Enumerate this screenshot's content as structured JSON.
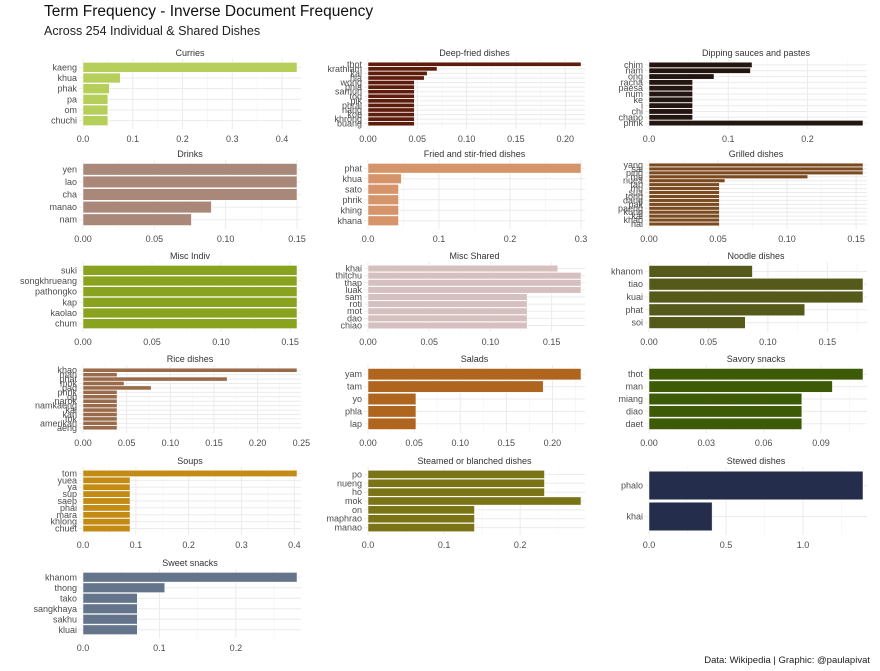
{
  "header": {
    "title": "Term Frequency - Inverse Document Frequency",
    "subtitle": "Across 254 Individual & Shared Dishes",
    "caption": "Data: Wikipedia | Graphic: @paulapivat"
  },
  "chart_data": {
    "type": "bar",
    "orientation": "horizontal",
    "layout": "facet-wrap 3 columns, free scales",
    "xlabel": "",
    "ylabel": "",
    "grid": true,
    "facets": [
      {
        "name": "Curries",
        "color": "#b5cf5a",
        "xlim": [
          0,
          0.43
        ],
        "ticks": [
          "0.0",
          "0.1",
          "0.2",
          "0.3",
          "0.4"
        ],
        "tick_values": [
          0,
          0.1,
          0.2,
          0.3,
          0.4
        ],
        "terms": [
          "kaeng",
          "khua",
          "phak",
          "pa",
          "om",
          "chuchi"
        ],
        "values": [
          0.43,
          0.075,
          0.053,
          0.05,
          0.05,
          0.05
        ]
      },
      {
        "name": "Deep-fried dishes",
        "color": "#5e1d0c",
        "xlim": [
          0,
          0.216
        ],
        "ticks": [
          "0.00",
          "0.05",
          "0.10",
          "0.15",
          "0.20"
        ],
        "tick_values": [
          0,
          0.05,
          0.1,
          0.15,
          0.2
        ],
        "terms": [
          "thot",
          "krathiam",
          "kai",
          "hia",
          "wong",
          "phia",
          "samun",
          "tod",
          "pik",
          "phrai",
          "nang",
          "kop",
          "khrong",
          "buang"
        ],
        "values": [
          0.216,
          0.07,
          0.06,
          0.057,
          0.047,
          0.047,
          0.047,
          0.047,
          0.047,
          0.047,
          0.047,
          0.047,
          0.047,
          0.047
        ]
      },
      {
        "name": "Dipping sauces and pastes",
        "color": "#231510",
        "xlim": [
          0,
          0.27
        ],
        "ticks": [
          "0.0",
          "0.1",
          "0.2"
        ],
        "tick_values": [
          0,
          0.1,
          0.2
        ],
        "terms": [
          "chim",
          "nam",
          "ong",
          "racha",
          "paesa",
          "num",
          "ke",
          "i",
          "chi",
          "chapo",
          "phrik"
        ],
        "values": [
          0.13,
          0.128,
          0.082,
          0.055,
          0.055,
          0.055,
          0.055,
          0.055,
          0.055,
          0.055,
          0.27
        ]
      },
      {
        "name": "Drinks",
        "color": "#a9887a",
        "xlim": [
          0,
          0.15
        ],
        "ticks": [
          "0.00",
          "0.05",
          "0.10",
          "0.15"
        ],
        "tick_values": [
          0,
          0.05,
          0.1,
          0.15
        ],
        "terms": [
          "yen",
          "lao",
          "cha",
          "manao",
          "nam"
        ],
        "values": [
          0.15,
          0.15,
          0.15,
          0.09,
          0.076
        ]
      },
      {
        "name": "Fried and stir-fried dishes",
        "color": "#d5946a",
        "xlim": [
          0,
          0.3
        ],
        "ticks": [
          "0.0",
          "0.1",
          "0.2",
          "0.3"
        ],
        "tick_values": [
          0,
          0.1,
          0.2,
          0.3
        ],
        "terms": [
          "phat",
          "khua",
          "sato",
          "phrik",
          "khing",
          "khana"
        ],
        "values": [
          0.3,
          0.047,
          0.043,
          0.043,
          0.043,
          0.043
        ]
      },
      {
        "name": "Grilled dishes",
        "color": "#7b4a1f",
        "xlim": [
          0,
          0.155
        ],
        "ticks": [
          "0.00",
          "0.05",
          "0.10",
          "0.15"
        ],
        "tick_values": [
          0,
          0.05,
          0.1,
          0.15
        ],
        "terms": [
          "yang",
          "sai",
          "ping",
          "mu",
          "nuea",
          "tap",
          "mu",
          "sua",
          "tong",
          "dang",
          "pak",
          "paeng",
          "kung",
          "kai",
          "khao",
          "hai"
        ],
        "values": [
          0.155,
          0.155,
          0.155,
          0.115,
          0.055,
          0.051,
          0.051,
          0.051,
          0.051,
          0.051,
          0.051,
          0.051,
          0.051,
          0.051,
          0.051,
          0.051
        ]
      },
      {
        "name": "Misc Indiv",
        "color": "#89a31f",
        "xlim": [
          0,
          0.155
        ],
        "ticks": [
          "0.00",
          "0.05",
          "0.10",
          "0.15"
        ],
        "tick_values": [
          0,
          0.05,
          0.1,
          0.15
        ],
        "terms": [
          "suki",
          "songkhrueang",
          "pathongko",
          "kap",
          "kaolao",
          "chum"
        ],
        "values": [
          0.155,
          0.155,
          0.155,
          0.155,
          0.155,
          0.155
        ]
      },
      {
        "name": "Misc Shared",
        "color": "#d5bfbf",
        "xlim": [
          0,
          0.174
        ],
        "ticks": [
          "0.00",
          "0.05",
          "0.10",
          "0.15"
        ],
        "tick_values": [
          0,
          0.05,
          0.1,
          0.15
        ],
        "terms": [
          "khai",
          "thitchu",
          "thap",
          "luak",
          "sam",
          "roti",
          "mot",
          "dao",
          "chiao"
        ],
        "values": [
          0.155,
          0.174,
          0.174,
          0.174,
          0.13,
          0.13,
          0.13,
          0.13,
          0.13
        ]
      },
      {
        "name": "Noodle dishes",
        "color": "#55591a",
        "xlim": [
          0,
          0.18
        ],
        "ticks": [
          "0.00",
          "0.05",
          "0.10",
          "0.15"
        ],
        "tick_values": [
          0,
          0.05,
          0.1,
          0.15
        ],
        "terms": [
          "khanom",
          "tiao",
          "kuai",
          "phat",
          "soi"
        ],
        "values": [
          0.087,
          0.18,
          0.18,
          0.131,
          0.081
        ]
      },
      {
        "name": "Rice dishes",
        "color": "#996b4a",
        "xlim": [
          0,
          0.245
        ],
        "ticks": [
          "0.00",
          "0.05",
          "0.10",
          "0.15",
          "0.20",
          "0.25"
        ],
        "tick_values": [
          0,
          0.05,
          0.1,
          0.15,
          0.2,
          0.25
        ],
        "terms": [
          "khao",
          "man",
          "phat",
          "mok",
          "pad",
          "phrik",
          "op",
          "narok",
          "namkaeng",
          "kai",
          "kan",
          "tok",
          "amerikan",
          "aeng"
        ],
        "values": [
          0.245,
          0.039,
          0.165,
          0.047,
          0.078,
          0.039,
          0.039,
          0.039,
          0.039,
          0.039,
          0.039,
          0.039,
          0.039,
          0.039
        ]
      },
      {
        "name": "Salads",
        "color": "#b0651e",
        "xlim": [
          0,
          0.231
        ],
        "ticks": [
          "0.00",
          "0.05",
          "0.10",
          "0.15",
          "0.20"
        ],
        "tick_values": [
          0,
          0.05,
          0.1,
          0.15,
          0.2
        ],
        "terms": [
          "yam",
          "tam",
          "yo",
          "phla",
          "lap"
        ],
        "values": [
          0.231,
          0.19,
          0.052,
          0.052,
          0.052
        ]
      },
      {
        "name": "Savory snacks",
        "color": "#3d5a07",
        "xlim": [
          0,
          0.112
        ],
        "ticks": [
          "0.00",
          "0.03",
          "0.06",
          "0.09"
        ],
        "tick_values": [
          0,
          0.03,
          0.06,
          0.09
        ],
        "terms": [
          "thot",
          "man",
          "miang",
          "diao",
          "daet"
        ],
        "values": [
          0.112,
          0.096,
          0.08,
          0.08,
          0.08
        ]
      },
      {
        "name": "Soups",
        "color": "#c38a14",
        "xlim": [
          0,
          0.405
        ],
        "ticks": [
          "0.0",
          "0.1",
          "0.2",
          "0.3",
          "0.4"
        ],
        "tick_values": [
          0,
          0.1,
          0.2,
          0.3,
          0.4
        ],
        "terms": [
          "tom",
          "yuea",
          "ya",
          "sup",
          "saep",
          "phai",
          "mara",
          "khlong",
          "chuet"
        ],
        "values": [
          0.405,
          0.089,
          0.089,
          0.089,
          0.089,
          0.089,
          0.089,
          0.089,
          0.089
        ]
      },
      {
        "name": "Steamed or blanched dishes",
        "color": "#7a7417",
        "xlim": [
          0,
          0.28
        ],
        "ticks": [
          "0.0",
          "0.1",
          "0.2"
        ],
        "tick_values": [
          0,
          0.1,
          0.2
        ],
        "terms": [
          "po",
          "nueng",
          "ho",
          "mok",
          "on",
          "maphrao",
          "manao"
        ],
        "values": [
          0.232,
          0.232,
          0.232,
          0.28,
          0.14,
          0.14,
          0.14
        ]
      },
      {
        "name": "Stewed dishes",
        "color": "#242d4b",
        "xlim": [
          0,
          1.39
        ],
        "ticks": [
          "0.0",
          "0.5",
          "1.0"
        ],
        "tick_values": [
          0,
          0.5,
          1.0
        ],
        "terms": [
          "phalo",
          "khai"
        ],
        "values": [
          1.39,
          0.41
        ]
      },
      {
        "name": "Sweet snacks",
        "color": "#64748a",
        "xlim": [
          0,
          0.28
        ],
        "ticks": [
          "0.0",
          "0.1",
          "0.2"
        ],
        "tick_values": [
          0,
          0.1,
          0.2
        ],
        "terms": [
          "khanom",
          "thong",
          "tako",
          "sangkhaya",
          "sakhu",
          "kluai"
        ],
        "values": [
          0.28,
          0.107,
          0.071,
          0.071,
          0.071,
          0.071
        ]
      }
    ]
  }
}
